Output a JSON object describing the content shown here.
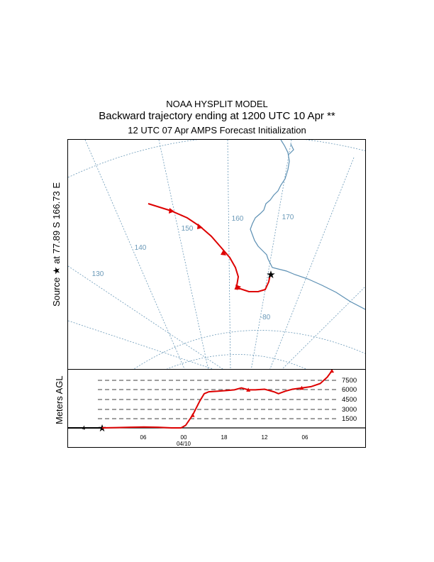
{
  "header": {
    "model_title": "NOAA HYSPLIT MODEL",
    "trajectory_title": "Backward trajectory ending at 1200 UTC 10 Apr **",
    "init_line": "12 UTC 07 Apr    AMPS  Forecast Initialization"
  },
  "map": {
    "source_label": "Source ★ at   77.89 S  166.73 E",
    "lon_labels": [
      "130",
      "140",
      "150",
      "160",
      "170"
    ],
    "lat_label": "-80",
    "colors": {
      "grid": "#6a99b8",
      "coast": "#5b8fb3",
      "trajectory": "#dd0000"
    }
  },
  "altitude": {
    "ylabel": "Meters AGL",
    "levels": [
      "7500",
      "6000",
      "4500",
      "3000",
      "1500"
    ],
    "time_ticks": [
      "06",
      "00",
      "18",
      "12",
      "06"
    ],
    "date_label": "04/10",
    "start_marker": "4"
  },
  "chart_data": {
    "type": "line",
    "title": "Backward trajectory ending at 1200 UTC 10 Apr **",
    "ylabel": "Meters AGL",
    "ylim": [
      0,
      9000
    ],
    "levels": [
      1500,
      3000,
      4500,
      6000,
      7500
    ],
    "series": [
      {
        "values": [
          [
            0,
            0
          ],
          [
            6,
            50
          ],
          [
            12,
            100
          ],
          [
            18,
            150
          ],
          [
            24,
            100
          ],
          [
            30,
            0
          ],
          [
            34,
            0
          ],
          [
            36,
            400
          ],
          [
            39,
            2000
          ],
          [
            42,
            4200
          ],
          [
            44,
            5400
          ],
          [
            46,
            5700
          ],
          [
            50,
            5800
          ],
          [
            54,
            5900
          ],
          [
            57,
            6000
          ],
          [
            60,
            6300
          ],
          [
            63,
            6000
          ],
          [
            66,
            6000
          ],
          [
            70,
            6100
          ],
          [
            72,
            5900
          ],
          [
            74,
            5700
          ],
          [
            76,
            5400
          ],
          [
            79,
            5800
          ],
          [
            82,
            6100
          ],
          [
            86,
            6300
          ],
          [
            90,
            6500
          ],
          [
            94,
            7000
          ],
          [
            97,
            8000
          ],
          [
            99,
            9000
          ]
        ]
      }
    ]
  }
}
